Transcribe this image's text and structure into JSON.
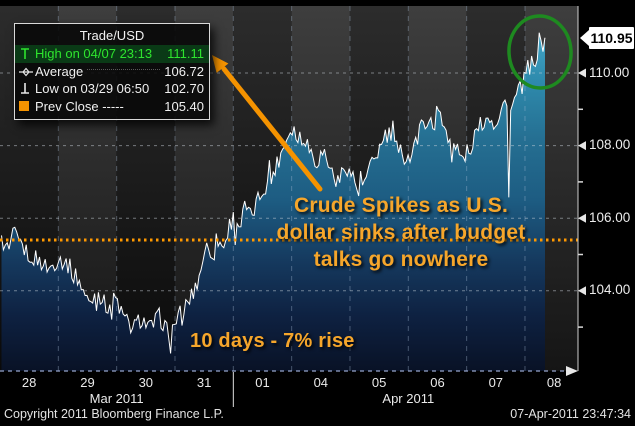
{
  "window": {
    "copyright": "Copyright 2011 Bloomberg Finance L.P.",
    "timestamp": "07-Apr-2011 23:47:34"
  },
  "legend": {
    "title": "Trade/USD",
    "rows": [
      {
        "icon": "high-marker-icon",
        "label": "High on 04/07 23:13",
        "value": "111.11",
        "highlight": true
      },
      {
        "icon": "average-marker-icon",
        "label": "Average",
        "value": "106.72",
        "highlight": false
      },
      {
        "icon": "low-marker-icon",
        "label": "Low on 03/29 06:50",
        "value": "102.70",
        "highlight": false
      },
      {
        "icon": "prev-close-marker-icon",
        "label": "Prev Close -----",
        "value": "105.40",
        "highlight": false
      }
    ]
  },
  "annotations": {
    "headline": [
      "Crude Spikes as U.S.",
      "dollar sinks after budget",
      "talks go nowhere"
    ],
    "rise_note": "10 days - 7% rise",
    "arrow": "orange arrow from headline text to legend high value",
    "highlight_circle": "green ellipse around final price spike"
  },
  "colors": {
    "background": "#000000",
    "band_dark_top": "#2c2c2c",
    "band_dark_bottom": "#0a0a0a",
    "band_light_top": "#3e3e3e",
    "band_light_bottom": "#151515",
    "fill_top": "#46a8c9",
    "fill_mid": "#1d5c82",
    "fill_bottom": "#091226",
    "price_line": "#ffffff",
    "grid": "#aab4be",
    "prev_close_line": "#ff9900",
    "accent_orange": "#f59300",
    "annotation_text": "#f6a62b",
    "legend_high_text": "#2ee52e",
    "legend_high_bg": "#0a3a16",
    "circle_green": "#1e8a20",
    "tag_bg": "#ffffff",
    "tag_text": "#000000",
    "axis_text": "#ececec"
  },
  "chart_data": {
    "type": "line",
    "title": "Trade/USD",
    "subtitle": "intraday crude oil price, white tick bars with teal area fill",
    "x_day_labels": [
      "28",
      "29",
      "30",
      "31",
      "01",
      "04",
      "05",
      "06",
      "07",
      "08"
    ],
    "month_labels": [
      {
        "label": "Mar 2011",
        "center_day": 2.0
      },
      {
        "label": "Apr 2011",
        "center_day": 7.0
      }
    ],
    "month_separator_day": 4,
    "y_axis": {
      "major": [
        {
          "label": "110.00",
          "price": 110.0
        },
        {
          "label": "108.00",
          "price": 108.0
        },
        {
          "label": "106.00",
          "price": 106.0
        },
        {
          "label": "104.00",
          "price": 104.0
        }
      ],
      "minor": [
        109.0,
        107.0,
        105.0,
        103.0
      ],
      "ylim": [
        101.8,
        111.8
      ]
    },
    "last_price_label": "110.95",
    "last_price": 110.95,
    "stats": {
      "high": {
        "time": "04/07 23:13",
        "value": 111.11
      },
      "average": 106.72,
      "low": {
        "time": "03/29 06:50",
        "value": 102.7
      },
      "prev_close": 105.4
    },
    "price_path": [
      [
        0.0,
        105.4
      ],
      [
        0.12,
        105.25
      ],
      [
        0.25,
        105.55
      ],
      [
        0.45,
        105.05
      ],
      [
        0.65,
        104.85
      ],
      [
        0.85,
        104.6
      ],
      [
        1.0,
        104.9
      ],
      [
        1.15,
        104.75
      ],
      [
        1.35,
        104.3
      ],
      [
        1.52,
        103.65
      ],
      [
        1.68,
        104.0
      ],
      [
        1.82,
        103.55
      ],
      [
        1.98,
        103.8
      ],
      [
        2.12,
        103.25
      ],
      [
        2.28,
        102.95
      ],
      [
        2.42,
        103.25
      ],
      [
        2.58,
        102.95
      ],
      [
        2.72,
        103.3
      ],
      [
        2.83,
        103.05
      ],
      [
        2.9,
        102.7
      ],
      [
        3.02,
        103.2
      ],
      [
        3.15,
        103.5
      ],
      [
        3.3,
        103.9
      ],
      [
        3.42,
        104.4
      ],
      [
        3.52,
        105.25
      ],
      [
        3.62,
        105.0
      ],
      [
        3.72,
        105.45
      ],
      [
        3.82,
        105.2
      ],
      [
        3.92,
        105.8
      ],
      [
        4.02,
        106.05
      ],
      [
        4.12,
        105.75
      ],
      [
        4.2,
        106.35
      ],
      [
        4.3,
        106.0
      ],
      [
        4.42,
        106.5
      ],
      [
        4.55,
        106.9
      ],
      [
        4.7,
        107.3
      ],
      [
        4.82,
        107.8
      ],
      [
        4.92,
        108.25
      ],
      [
        5.02,
        108.55
      ],
      [
        5.1,
        108.15
      ],
      [
        5.18,
        108.4
      ],
      [
        5.3,
        107.95
      ],
      [
        5.42,
        107.55
      ],
      [
        5.55,
        107.85
      ],
      [
        5.68,
        107.3
      ],
      [
        5.8,
        106.95
      ],
      [
        5.92,
        107.5
      ],
      [
        6.05,
        107.15
      ],
      [
        6.15,
        106.7
      ],
      [
        6.28,
        107.1
      ],
      [
        6.42,
        107.65
      ],
      [
        6.55,
        108.05
      ],
      [
        6.68,
        108.3
      ],
      [
        6.8,
        107.9
      ],
      [
        6.92,
        107.85
      ],
      [
        7.0,
        107.6
      ],
      [
        7.1,
        108.1
      ],
      [
        7.2,
        108.45
      ],
      [
        7.32,
        108.75
      ],
      [
        7.42,
        108.5
      ],
      [
        7.52,
        108.85
      ],
      [
        7.64,
        108.45
      ],
      [
        7.76,
        108.05
      ],
      [
        7.88,
        107.7
      ],
      [
        7.95,
        107.65
      ],
      [
        8.05,
        107.95
      ],
      [
        8.15,
        108.3
      ],
      [
        8.27,
        108.65
      ],
      [
        8.38,
        108.9
      ],
      [
        8.47,
        108.6
      ],
      [
        8.56,
        108.85
      ],
      [
        8.64,
        109.2
      ],
      [
        8.7,
        109.05
      ],
      [
        8.72,
        106.4
      ],
      [
        8.75,
        108.95
      ],
      [
        8.82,
        109.25
      ],
      [
        8.9,
        109.5
      ],
      [
        8.98,
        109.75
      ],
      [
        9.05,
        110.15
      ],
      [
        9.12,
        109.9
      ],
      [
        9.18,
        110.4
      ],
      [
        9.24,
        110.45
      ],
      [
        9.26,
        111.11
      ],
      [
        9.31,
        110.6
      ],
      [
        9.343,
        110.95
      ]
    ],
    "special_points": {
      "low_day": 2.9,
      "high_day": 9.26,
      "end_day": 9.343
    },
    "legend_position": "top-left",
    "grid": "dashed horizontal at majors, dashed vertical per trading day"
  }
}
